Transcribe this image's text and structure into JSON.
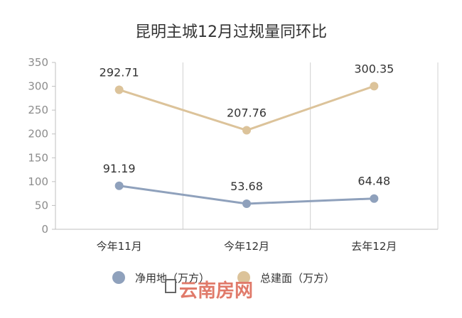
{
  "chart_data": {
    "type": "line",
    "title": "昆明主城12月过规量同环比",
    "categories": [
      "今年11月",
      "今年12月",
      "去年12月"
    ],
    "ylim": [
      0,
      350
    ],
    "yticks": [
      0,
      50,
      100,
      150,
      200,
      250,
      300,
      350
    ],
    "yticks_text": [
      "0",
      "50",
      "100",
      "150",
      "200",
      "250",
      "300",
      "350"
    ],
    "grid": "vertical-only",
    "legend_position": "bottom",
    "series": [
      {
        "name": "净用地（万方）",
        "values": [
          91.19,
          53.68,
          64.48
        ],
        "labels": [
          "91.19",
          "53.68",
          "64.48"
        ],
        "color": "#8fa1bc"
      },
      {
        "name": "总建面（万方）",
        "values": [
          292.71,
          207.76,
          300.35
        ],
        "labels": [
          "292.71",
          "207.76",
          "300.35"
        ],
        "color": "#dcc39a"
      }
    ]
  },
  "watermark": {
    "text": "云南房网",
    "color": "#e07a6a"
  }
}
